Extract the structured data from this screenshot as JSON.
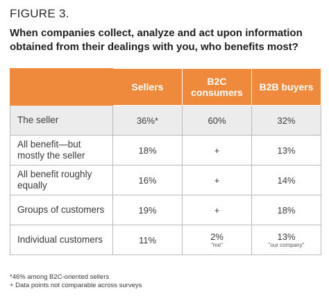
{
  "figure_label": "FIGURE 3.",
  "figure_title": "When companies collect, analyze and act upon information obtained from their dealings with you, who benefits most?",
  "chart_data": {
    "type": "table",
    "columns": [
      "Sellers",
      "B2C consumers",
      "B2B buyers"
    ],
    "rows": [
      {
        "label": "The seller",
        "cells": [
          {
            "value": "36%*",
            "sub": ""
          },
          {
            "value": "60%",
            "sub": ""
          },
          {
            "value": "32%",
            "sub": ""
          }
        ]
      },
      {
        "label": "All benefit—but mostly the seller",
        "cells": [
          {
            "value": "18%",
            "sub": ""
          },
          {
            "value": "+",
            "sub": ""
          },
          {
            "value": "13%",
            "sub": ""
          }
        ]
      },
      {
        "label": "All benefit roughly equally",
        "cells": [
          {
            "value": "16%",
            "sub": ""
          },
          {
            "value": "+",
            "sub": ""
          },
          {
            "value": "14%",
            "sub": ""
          }
        ]
      },
      {
        "label": "Groups of customers",
        "cells": [
          {
            "value": "19%",
            "sub": ""
          },
          {
            "value": "+",
            "sub": ""
          },
          {
            "value": "18%",
            "sub": ""
          }
        ]
      },
      {
        "label": "Individual customers",
        "cells": [
          {
            "value": "11%",
            "sub": ""
          },
          {
            "value": "2%",
            "sub": "\"me\""
          },
          {
            "value": "13%",
            "sub": "\"our company\""
          }
        ]
      }
    ]
  },
  "footnotes": [
    "*46% among B2C-oriented sellers",
    "+ Data points not comparable across surveys"
  ],
  "colors": {
    "header_bg": "#ef8a3c",
    "highlight_row": "#ececec",
    "grid": "#b9b9b9"
  }
}
